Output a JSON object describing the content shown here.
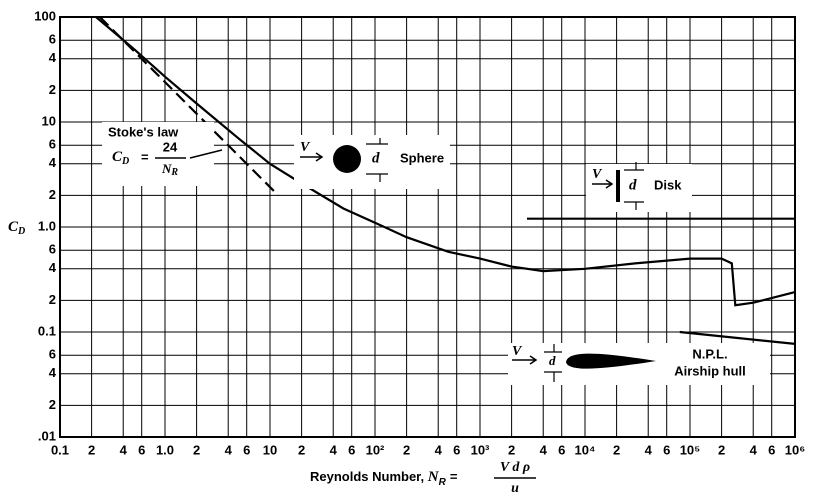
{
  "chart_data": {
    "type": "line",
    "xlog": true,
    "ylog": true,
    "grid": true,
    "xlim": [
      0.1,
      1000000
    ],
    "ylim": [
      0.01,
      100
    ],
    "xticks": [
      0.1,
      {
        "value": 0.2,
        "label": "2"
      },
      {
        "value": 0.4,
        "label": "4"
      },
      {
        "value": 0.6,
        "label": "6"
      },
      {
        "value": 1,
        "label": "1.0"
      },
      2,
      4,
      6,
      10,
      {
        "value": 20,
        "label": "2"
      },
      {
        "value": 40,
        "label": "4"
      },
      {
        "value": 60,
        "label": "6"
      },
      {
        "value": 100,
        "label": "10²"
      },
      {
        "value": 200,
        "label": "2"
      },
      {
        "value": 400,
        "label": "4"
      },
      {
        "value": 600,
        "label": "6"
      },
      {
        "value": 1000,
        "label": "10³"
      },
      {
        "value": 2000,
        "label": "2"
      },
      {
        "value": 4000,
        "label": "4"
      },
      {
        "value": 6000,
        "label": "6"
      },
      {
        "value": 10000,
        "label": "10⁴"
      },
      {
        "value": 20000,
        "label": "2"
      },
      {
        "value": 40000,
        "label": "4"
      },
      {
        "value": 60000,
        "label": "6"
      },
      {
        "value": 100000,
        "label": "10⁵"
      },
      {
        "value": 200000,
        "label": "2"
      },
      {
        "value": 400000,
        "label": "4"
      },
      {
        "value": 600000,
        "label": "6"
      },
      {
        "value": 1000000,
        "label": "10⁶"
      }
    ],
    "yticks": [
      100,
      {
        "value": 60,
        "label": "6"
      },
      {
        "value": 40,
        "label": "4"
      },
      {
        "value": 20,
        "label": "2"
      },
      10,
      6,
      4,
      2,
      {
        "value": 1,
        "label": "1.0"
      },
      {
        "value": 0.6,
        "label": "6"
      },
      {
        "value": 0.4,
        "label": "4"
      },
      {
        "value": 0.2,
        "label": "2"
      },
      0.1,
      {
        "value": 0.06,
        "label": "6"
      },
      {
        "value": 0.04,
        "label": "4"
      },
      {
        "value": 0.02,
        "label": "2"
      },
      {
        "value": 0.01,
        "label": ".01"
      }
    ],
    "xlabel": {
      "text": "Reynolds Number, ",
      "symbol": "N",
      "sub": "R",
      "eq": "=",
      "num": "V d ρ",
      "den": "u"
    },
    "ylabel": {
      "symbol": "C",
      "sub": "D"
    },
    "series": [
      {
        "name": "Sphere",
        "color": "#000000",
        "dash": false,
        "x": [
          0.22,
          0.5,
          1,
          2,
          5,
          10,
          20,
          50,
          100,
          200,
          500,
          1000,
          2000,
          4000,
          10000,
          30000,
          100000,
          200000,
          250000,
          270000,
          400000,
          1000000
        ],
        "values": [
          100,
          50,
          27,
          15,
          7,
          4,
          2.6,
          1.5,
          1.1,
          0.8,
          0.58,
          0.5,
          0.42,
          0.38,
          0.4,
          0.45,
          0.5,
          0.5,
          0.45,
          0.18,
          0.19,
          0.24
        ]
      },
      {
        "name": "Stoke's law",
        "color": "#000000",
        "dash": true,
        "x": [
          0.24,
          12
        ],
        "values": [
          100,
          2
        ]
      },
      {
        "name": "Disk",
        "color": "#000000",
        "dash": false,
        "x": [
          2800,
          1000000
        ],
        "values": [
          1.2,
          1.2
        ]
      },
      {
        "name": "Airship hull",
        "color": "#000000",
        "dash": false,
        "x": [
          80000,
          1000000
        ],
        "values": [
          0.1,
          0.077
        ]
      }
    ],
    "annotations": {
      "stokes": {
        "symbol": "C",
        "sub": "D",
        "eq": "=",
        "num": "24",
        "den": "N",
        "den_sub": "R"
      },
      "sphere": {
        "v": "V",
        "d": "d"
      },
      "disk": {
        "v": "V",
        "d": "d"
      },
      "airship": {
        "v": "V",
        "d": "d",
        "label1": "N.P.L."
      }
    }
  }
}
